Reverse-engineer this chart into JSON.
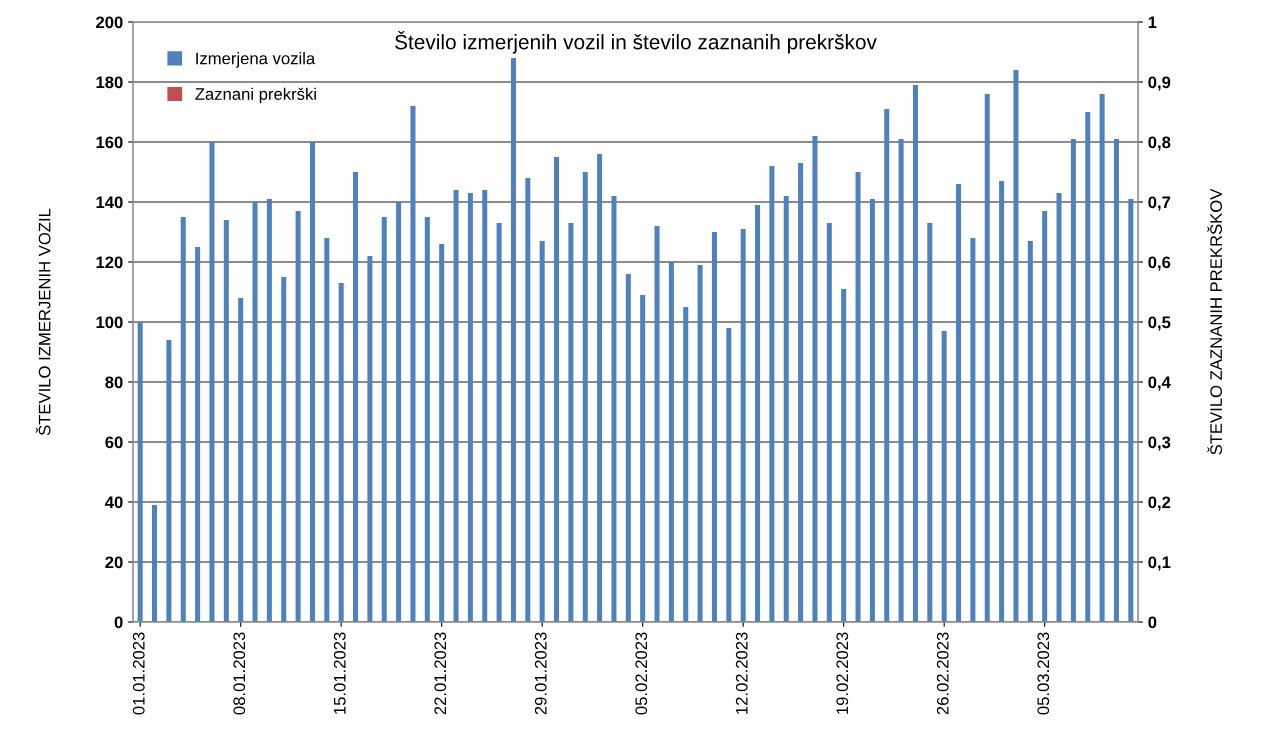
{
  "chart_data": {
    "type": "bar",
    "title": "Število izmerjenih vozil in število zaznanih prekrškov",
    "ylabel": "ŠTEVILO IZMERJENIH VOZIL",
    "y2label": "ŠTEVILO ZAZNANIH PREKRŠKOV",
    "categories": [
      "01.01.2023",
      null,
      null,
      null,
      null,
      null,
      null,
      "08.01.2023",
      null,
      null,
      null,
      null,
      null,
      null,
      "15.01.2023",
      null,
      null,
      null,
      null,
      null,
      null,
      "22.01.2023",
      null,
      null,
      null,
      null,
      null,
      null,
      "29.01.2023",
      null,
      null,
      null,
      null,
      null,
      null,
      "05.02.2023",
      null,
      null,
      null,
      null,
      null,
      null,
      "12.02.2023",
      null,
      null,
      null,
      null,
      null,
      null,
      "19.02.2023",
      null,
      null,
      null,
      null,
      null,
      null,
      "26.02.2023",
      null,
      null,
      null,
      null,
      null,
      null,
      "05.03.2023",
      null,
      null,
      null,
      null,
      null,
      null
    ],
    "series": [
      {
        "name": "Izmerjena vozila",
        "color": "#4f81bd",
        "values": [
          100,
          39,
          94,
          135,
          125,
          160,
          134,
          108,
          140,
          141,
          115,
          137,
          160,
          128,
          113,
          150,
          122,
          135,
          140,
          172,
          135,
          126,
          144,
          143,
          144,
          133,
          188,
          148,
          127,
          155,
          133,
          150,
          156,
          142,
          116,
          109,
          132,
          120,
          105,
          119,
          130,
          98,
          131,
          139,
          152,
          142,
          153,
          162,
          133,
          111,
          150,
          141,
          171,
          161,
          179,
          133,
          97,
          146,
          128,
          176,
          147,
          184,
          127,
          137,
          143,
          161,
          170,
          176,
          161,
          141
        ]
      },
      {
        "name": "Zaznani prekrški",
        "color": "#c0504d",
        "values": [
          0,
          0,
          0,
          0,
          0,
          0,
          0,
          0,
          0,
          0,
          0,
          0,
          0,
          0,
          0,
          0,
          0,
          0,
          0,
          0,
          0,
          0,
          0,
          0,
          0,
          0,
          0,
          0,
          0,
          0,
          0,
          0,
          0,
          0,
          0,
          0,
          0,
          0,
          0,
          0,
          0,
          0,
          0,
          0,
          0,
          0,
          0,
          0,
          0,
          0,
          0,
          0,
          0,
          0,
          0,
          0,
          0,
          0,
          0,
          0,
          0,
          0,
          0,
          0,
          0,
          0,
          0,
          0,
          0,
          0
        ]
      }
    ],
    "ylim": [
      0,
      200
    ],
    "yticks": [
      0,
      20,
      40,
      60,
      80,
      100,
      120,
      140,
      160,
      180,
      200
    ],
    "y2lim": [
      0,
      1
    ],
    "y2ticks": [
      0,
      {
        "value": 0.1,
        "label": "0,1"
      },
      {
        "value": 0.2,
        "label": "0,2"
      },
      {
        "value": 0.3,
        "label": "0,3"
      },
      {
        "value": 0.4,
        "label": "0,4"
      },
      {
        "value": 0.5,
        "label": "0,5"
      },
      {
        "value": 0.6,
        "label": "0,6"
      },
      {
        "value": 0.7,
        "label": "0,7"
      },
      {
        "value": 0.8,
        "label": "0,8"
      },
      {
        "value": 0.9,
        "label": "0,9"
      },
      1
    ],
    "grid": "y",
    "legend": "top left"
  }
}
